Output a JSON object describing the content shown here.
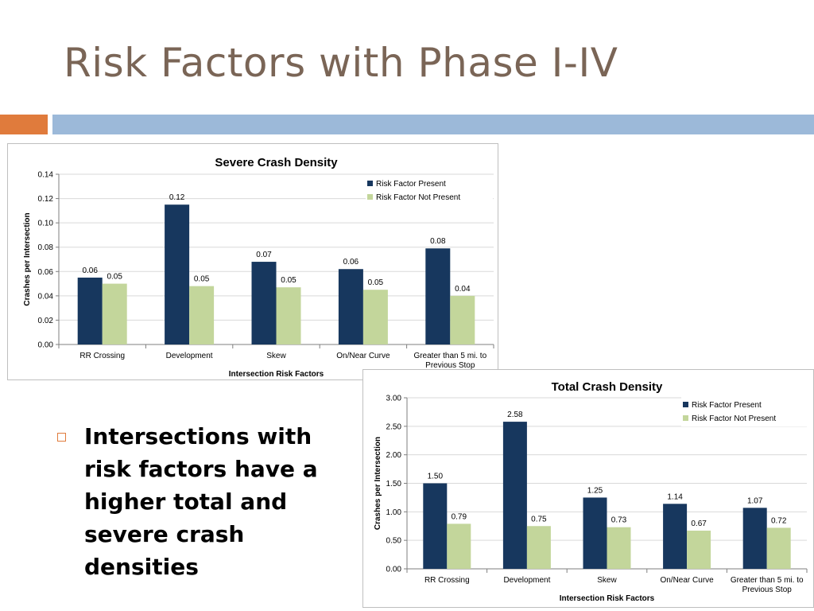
{
  "slide": {
    "title": "Risk Factors with Phase I-IV",
    "bullet": "Intersections with risk factors have a higher total and severe crash densities"
  },
  "colors": {
    "series_present": "#17375e",
    "series_not_present": "#c3d69b",
    "accent_orange": "#e07b3c",
    "accent_blue": "#9cb9d9",
    "title_color": "#7a6556"
  },
  "chart_data": [
    {
      "type": "bar",
      "title": "Severe Crash Density",
      "xlabel": "Intersection Risk Factors",
      "ylabel": "Crashes per Intersection",
      "categories": [
        "RR Crossing",
        "Development",
        "Skew",
        "On/Near Curve",
        "Greater than 5 mi. to Previous Stop"
      ],
      "series": [
        {
          "name": "Risk Factor Present",
          "values": [
            0.055,
            0.115,
            0.068,
            0.062,
            0.079
          ],
          "labels": [
            "0.06",
            "0.12",
            "0.07",
            "0.06",
            "0.08"
          ]
        },
        {
          "name": "Risk Factor Not Present",
          "values": [
            0.05,
            0.048,
            0.047,
            0.045,
            0.04
          ],
          "labels": [
            "0.05",
            "0.05",
            "0.05",
            "0.05",
            "0.04"
          ]
        }
      ],
      "ylim": [
        0,
        0.14
      ],
      "yticks": [
        "0.00",
        "0.02",
        "0.04",
        "0.06",
        "0.08",
        "0.10",
        "0.12",
        "0.14"
      ],
      "grid": true,
      "legend": "top-right"
    },
    {
      "type": "bar",
      "title": "Total Crash Density",
      "xlabel": "Intersection Risk Factors",
      "ylabel": "Crashes per Intersection",
      "categories": [
        "RR Crossing",
        "Development",
        "Skew",
        "On/Near Curve",
        "Greater than 5 mi. to Previous Stop"
      ],
      "series": [
        {
          "name": "Risk Factor Present",
          "values": [
            1.5,
            2.58,
            1.25,
            1.14,
            1.07
          ],
          "labels": [
            "1.50",
            "2.58",
            "1.25",
            "1.14",
            "1.07"
          ]
        },
        {
          "name": "Risk Factor Not Present",
          "values": [
            0.79,
            0.75,
            0.73,
            0.67,
            0.72
          ],
          "labels": [
            "0.79",
            "0.75",
            "0.73",
            "0.67",
            "0.72"
          ]
        }
      ],
      "ylim": [
        0,
        3.0
      ],
      "yticks": [
        "0.00",
        "0.50",
        "1.00",
        "1.50",
        "2.00",
        "2.50",
        "3.00"
      ],
      "grid": true,
      "legend": "top-right"
    }
  ]
}
